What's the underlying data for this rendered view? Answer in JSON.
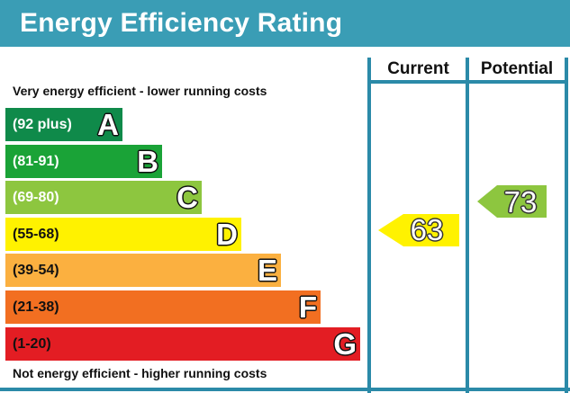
{
  "title": "Energy Efficiency Rating",
  "columns": {
    "current": "Current",
    "potential": "Potential"
  },
  "notes": {
    "top": "Very energy efficient - lower running costs",
    "bottom": "Not energy efficient - higher running costs"
  },
  "colors": {
    "header": "#3a9db5",
    "frame": "#2b8aa8"
  },
  "chart_data": {
    "type": "bar",
    "categories": [
      "A",
      "B",
      "C",
      "D",
      "E",
      "F",
      "G"
    ],
    "bands": [
      {
        "letter": "A",
        "range": "(92 plus)",
        "min": 92,
        "max": null,
        "color": "#0f8a4a",
        "text_color": "#ffffff"
      },
      {
        "letter": "B",
        "range": "(81-91)",
        "min": 81,
        "max": 91,
        "color": "#1aa337",
        "text_color": "#ffffff"
      },
      {
        "letter": "C",
        "range": "(69-80)",
        "min": 69,
        "max": 80,
        "color": "#8dc63f",
        "text_color": "#ffffff"
      },
      {
        "letter": "D",
        "range": "(55-68)",
        "min": 55,
        "max": 68,
        "color": "#fff200",
        "text_color": "#111111"
      },
      {
        "letter": "E",
        "range": "(39-54)",
        "min": 39,
        "max": 54,
        "color": "#fbb040",
        "text_color": "#111111"
      },
      {
        "letter": "F",
        "range": "(21-38)",
        "min": 21,
        "max": 38,
        "color": "#f26f21",
        "text_color": "#111111"
      },
      {
        "letter": "G",
        "range": "(1-20)",
        "min": 1,
        "max": 20,
        "color": "#e31d23",
        "text_color": "#111111"
      }
    ],
    "current": {
      "value": 63,
      "band": "D",
      "color": "#fff200"
    },
    "potential": {
      "value": 73,
      "band": "C",
      "color": "#8dc63f"
    }
  }
}
